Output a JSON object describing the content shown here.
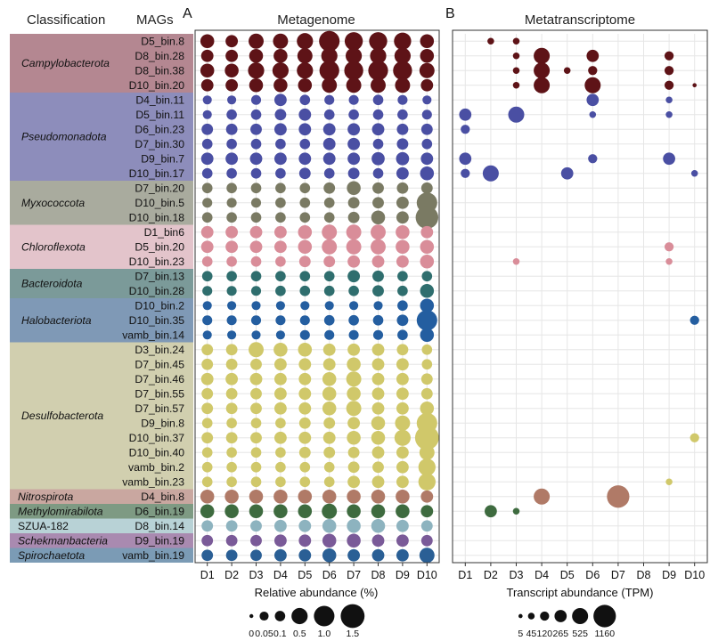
{
  "chart_data": {
    "type": "bubble-matrix",
    "headers": {
      "classification": "Classification",
      "mags": "MAGs",
      "panel_a_letter": "A",
      "panel_b_letter": "B",
      "panel_a_title": "Metagenome",
      "panel_b_title": "Metatranscriptome"
    },
    "samples": [
      "D1",
      "D2",
      "D3",
      "D4",
      "D5",
      "D6",
      "D7",
      "D8",
      "D9",
      "D10"
    ],
    "groups": [
      {
        "name": "Campylobacterota",
        "color": "#b48791",
        "dot": "#5e1317",
        "italic": true,
        "mags": [
          "D5_bin.8",
          "D8_bin.28",
          "D8_bin.38",
          "D10_bin.20"
        ]
      },
      {
        "name": "Pseudomonadota",
        "color": "#8d8dbb",
        "dot": "#4a4fa3",
        "italic": true,
        "mags": [
          "D4_bin.11",
          "D5_bin.11",
          "D6_bin.23",
          "D7_bin.30",
          "D9_bin.7",
          "D10_bin.17"
        ]
      },
      {
        "name": "Myxococcota",
        "color": "#a9ab9e",
        "dot": "#7a7a63",
        "italic": true,
        "mags": [
          "D7_bin.20",
          "D10_bin.5",
          "D10_bin.18"
        ]
      },
      {
        "name": "Chloroflexota",
        "color": "#e3c4cb",
        "dot": "#d98d99",
        "italic": true,
        "mags": [
          "D1_bin6",
          "D5_bin.20",
          "D10_bin.23"
        ]
      },
      {
        "name": "Bacteroidota",
        "color": "#7b9a99",
        "dot": "#2f6e6e",
        "italic": true,
        "mags": [
          "D7_bin.13",
          "D10_bin.28"
        ]
      },
      {
        "name": "Halobacteriota",
        "color": "#7f99b6",
        "dot": "#245ea0",
        "italic": true,
        "mags": [
          "D10_bin.2",
          "D10_bin.35",
          "vamb_bin.14"
        ]
      },
      {
        "name": "Desulfobacterota",
        "color": "#d1cfaf",
        "dot": "#d0c86a",
        "italic": true,
        "mags": [
          "D3_bin.24",
          "D7_bin.45",
          "D7_bin.46",
          "D7_bin.55",
          "D7_bin.57",
          "D9_bin.8",
          "D10_bin.37",
          "D10_bin.40",
          "vamb_bin.2",
          "vamb_bin.23"
        ]
      },
      {
        "name": "Nitrospirota",
        "color": "#c9a7a0",
        "dot": "#b07a67",
        "italic": true,
        "mags": [
          "D4_bin.8"
        ]
      },
      {
        "name": "Methylomirabilota",
        "color": "#7e9a83",
        "dot": "#3e6b3f",
        "italic": true,
        "mags": [
          "D6_bin.19"
        ]
      },
      {
        "name": "SZUA-182",
        "color": "#b8d2d6",
        "dot": "#8db3bf",
        "italic": false,
        "mags": [
          "D8_bin.14"
        ]
      },
      {
        "name": "Schekmanbacteria",
        "color": "#a98ab0",
        "dot": "#7a5a98",
        "italic": true,
        "mags": [
          "D9_bin.19"
        ]
      },
      {
        "name": "Spirochaetota",
        "color": "#7b9bb5",
        "dot": "#2a5f95",
        "italic": true,
        "mags": [
          "vamb_bin.19"
        ]
      }
    ],
    "metagenome": {
      "title": "Metagenome",
      "legend_title": "Relative abundance (%)",
      "legend_values": [
        "0",
        "0.05",
        "0.1",
        "0.5",
        "1.0",
        "1.5"
      ],
      "legend_levels": [
        0,
        0.05,
        0.1,
        0.5,
        1.0,
        1.5
      ],
      "values": [
        [
          0.3,
          0.2,
          0.4,
          0.4,
          0.5,
          1.0,
          0.7,
          0.7,
          0.6,
          0.3
        ],
        [
          0.2,
          0.2,
          0.3,
          0.3,
          0.4,
          0.5,
          0.5,
          0.5,
          0.5,
          0.3
        ],
        [
          0.3,
          0.3,
          0.5,
          0.5,
          0.5,
          0.9,
          0.8,
          0.9,
          0.8,
          0.4
        ],
        [
          0.2,
          0.2,
          0.3,
          0.3,
          0.3,
          0.4,
          0.4,
          0.4,
          0.4,
          0.2
        ],
        [
          0.05,
          0.05,
          0.08,
          0.2,
          0.1,
          0.08,
          0.08,
          0.1,
          0.08,
          0.05
        ],
        [
          0.05,
          0.1,
          0.1,
          0.15,
          0.2,
          0.1,
          0.1,
          0.1,
          0.1,
          0.08
        ],
        [
          0.15,
          0.15,
          0.15,
          0.2,
          0.2,
          0.2,
          0.2,
          0.2,
          0.15,
          0.15
        ],
        [
          0.1,
          0.1,
          0.1,
          0.1,
          0.1,
          0.2,
          0.2,
          0.1,
          0.15,
          0.1
        ],
        [
          0.2,
          0.2,
          0.2,
          0.2,
          0.2,
          0.2,
          0.2,
          0.25,
          0.25,
          0.2
        ],
        [
          0.1,
          0.1,
          0.1,
          0.1,
          0.15,
          0.1,
          0.15,
          0.1,
          0.2,
          0.3
        ],
        [
          0.1,
          0.1,
          0.1,
          0.1,
          0.1,
          0.15,
          0.3,
          0.15,
          0.15,
          0.15
        ],
        [
          0.08,
          0.08,
          0.08,
          0.1,
          0.1,
          0.1,
          0.15,
          0.15,
          0.2,
          1.0
        ],
        [
          0.1,
          0.1,
          0.1,
          0.1,
          0.1,
          0.1,
          0.15,
          0.3,
          0.2,
          1.3
        ],
        [
          0.2,
          0.2,
          0.2,
          0.2,
          0.3,
          0.4,
          0.4,
          0.4,
          0.3,
          0.2
        ],
        [
          0.2,
          0.2,
          0.2,
          0.2,
          0.3,
          0.4,
          0.4,
          0.4,
          0.3,
          0.3
        ],
        [
          0.1,
          0.1,
          0.1,
          0.1,
          0.15,
          0.15,
          0.2,
          0.2,
          0.2,
          0.3
        ],
        [
          0.1,
          0.1,
          0.1,
          0.1,
          0.1,
          0.1,
          0.2,
          0.15,
          0.1,
          0.1
        ],
        [
          0.08,
          0.08,
          0.08,
          0.1,
          0.1,
          0.1,
          0.1,
          0.15,
          0.1,
          0.3
        ],
        [
          0.05,
          0.05,
          0.05,
          0.05,
          0.05,
          0.05,
          0.05,
          0.05,
          0.1,
          0.3
        ],
        [
          0.08,
          0.08,
          0.08,
          0.08,
          0.08,
          0.1,
          0.1,
          0.1,
          0.15,
          1.0
        ],
        [
          0.05,
          0.05,
          0.05,
          0.05,
          0.08,
          0.08,
          0.08,
          0.08,
          0.1,
          0.3
        ],
        [
          0.15,
          0.15,
          0.4,
          0.3,
          0.3,
          0.2,
          0.2,
          0.2,
          0.15,
          0.1
        ],
        [
          0.15,
          0.15,
          0.15,
          0.2,
          0.2,
          0.2,
          0.3,
          0.2,
          0.2,
          0.1
        ],
        [
          0.2,
          0.2,
          0.2,
          0.2,
          0.2,
          0.3,
          0.4,
          0.2,
          0.2,
          0.15
        ],
        [
          0.15,
          0.15,
          0.15,
          0.2,
          0.2,
          0.3,
          0.3,
          0.2,
          0.2,
          0.15
        ],
        [
          0.15,
          0.15,
          0.15,
          0.2,
          0.2,
          0.3,
          0.4,
          0.2,
          0.2,
          0.3
        ],
        [
          0.1,
          0.1,
          0.1,
          0.1,
          0.15,
          0.15,
          0.2,
          0.3,
          0.4,
          1.0
        ],
        [
          0.15,
          0.15,
          0.15,
          0.2,
          0.2,
          0.2,
          0.3,
          0.3,
          0.5,
          1.5
        ],
        [
          0.1,
          0.1,
          0.1,
          0.1,
          0.15,
          0.15,
          0.15,
          0.2,
          0.2,
          0.4
        ],
        [
          0.1,
          0.1,
          0.1,
          0.1,
          0.1,
          0.1,
          0.15,
          0.15,
          0.2,
          0.6
        ],
        [
          0.1,
          0.1,
          0.1,
          0.1,
          0.1,
          0.1,
          0.2,
          0.2,
          0.2,
          0.6
        ],
        [
          0.3,
          0.3,
          0.3,
          0.3,
          0.3,
          0.3,
          0.3,
          0.3,
          0.3,
          0.2
        ],
        [
          0.3,
          0.3,
          0.3,
          0.3,
          0.3,
          0.4,
          0.3,
          0.3,
          0.3,
          0.2
        ],
        [
          0.15,
          0.15,
          0.15,
          0.2,
          0.2,
          0.3,
          0.3,
          0.3,
          0.2,
          0.15
        ],
        [
          0.15,
          0.15,
          0.15,
          0.2,
          0.2,
          0.3,
          0.3,
          0.2,
          0.2,
          0.15
        ],
        [
          0.15,
          0.15,
          0.15,
          0.2,
          0.2,
          0.3,
          0.2,
          0.2,
          0.2,
          0.4
        ]
      ]
    },
    "metatranscriptome": {
      "title": "Metatranscriptome",
      "legend_title": "Transcript abundance (TPM)",
      "legend_values": [
        "5",
        "45",
        "120",
        "265",
        "525",
        "1160"
      ],
      "legend_levels": [
        5,
        45,
        120,
        265,
        525,
        1160
      ],
      "values": [
        [
          0,
          45,
          45,
          0,
          0,
          0,
          0,
          0,
          0,
          0
        ],
        [
          0,
          0,
          45,
          525,
          0,
          265,
          0,
          0,
          120,
          0
        ],
        [
          0,
          0,
          45,
          525,
          45,
          120,
          0,
          0,
          120,
          0
        ],
        [
          0,
          0,
          45,
          525,
          0,
          525,
          0,
          0,
          120,
          5
        ],
        [
          0,
          0,
          0,
          0,
          0,
          265,
          0,
          0,
          45,
          0
        ],
        [
          265,
          0,
          525,
          0,
          0,
          45,
          0,
          0,
          45,
          0
        ],
        [
          120,
          0,
          0,
          0,
          0,
          0,
          0,
          0,
          0,
          0
        ],
        [
          0,
          0,
          0,
          0,
          0,
          0,
          0,
          0,
          0,
          0
        ],
        [
          265,
          0,
          0,
          0,
          0,
          120,
          0,
          0,
          265,
          0
        ],
        [
          120,
          525,
          0,
          0,
          265,
          0,
          0,
          0,
          0,
          45
        ],
        [
          0,
          0,
          0,
          0,
          0,
          0,
          0,
          0,
          0,
          0
        ],
        [
          0,
          0,
          0,
          0,
          0,
          0,
          0,
          0,
          0,
          0
        ],
        [
          0,
          0,
          0,
          0,
          0,
          0,
          0,
          0,
          0,
          0
        ],
        [
          0,
          0,
          0,
          0,
          0,
          0,
          0,
          0,
          0,
          0
        ],
        [
          0,
          0,
          0,
          0,
          0,
          0,
          0,
          0,
          120,
          0
        ],
        [
          0,
          0,
          45,
          0,
          0,
          0,
          0,
          0,
          45,
          0
        ],
        [
          0,
          0,
          0,
          0,
          0,
          0,
          0,
          0,
          0,
          0
        ],
        [
          0,
          0,
          0,
          0,
          0,
          0,
          0,
          0,
          0,
          0
        ],
        [
          0,
          0,
          0,
          0,
          0,
          0,
          0,
          0,
          0,
          0
        ],
        [
          0,
          0,
          0,
          0,
          0,
          0,
          0,
          0,
          0,
          120
        ],
        [
          0,
          0,
          0,
          0,
          0,
          0,
          0,
          0,
          0,
          0
        ],
        [
          0,
          0,
          0,
          0,
          0,
          0,
          0,
          0,
          0,
          0
        ],
        [
          0,
          0,
          0,
          0,
          0,
          0,
          0,
          0,
          0,
          0
        ],
        [
          0,
          0,
          0,
          0,
          0,
          0,
          0,
          0,
          0,
          0
        ],
        [
          0,
          0,
          0,
          0,
          0,
          0,
          0,
          0,
          0,
          0
        ],
        [
          0,
          0,
          0,
          0,
          0,
          0,
          0,
          0,
          0,
          0
        ],
        [
          0,
          0,
          0,
          0,
          0,
          0,
          0,
          0,
          0,
          0
        ],
        [
          0,
          0,
          0,
          0,
          0,
          0,
          0,
          0,
          0,
          120
        ],
        [
          0,
          0,
          0,
          0,
          0,
          0,
          0,
          0,
          0,
          0
        ],
        [
          0,
          0,
          0,
          0,
          0,
          0,
          0,
          0,
          0,
          0
        ],
        [
          0,
          0,
          0,
          0,
          0,
          0,
          0,
          0,
          45,
          0
        ],
        [
          0,
          0,
          0,
          525,
          0,
          0,
          1160,
          0,
          0,
          0
        ],
        [
          0,
          265,
          45,
          0,
          0,
          0,
          0,
          0,
          0,
          0
        ],
        [
          0,
          0,
          0,
          0,
          0,
          0,
          0,
          0,
          0,
          0
        ],
        [
          0,
          0,
          0,
          0,
          0,
          0,
          0,
          0,
          0,
          0
        ],
        [
          0,
          0,
          0,
          0,
          0,
          0,
          0,
          0,
          0,
          0
        ]
      ]
    }
  }
}
